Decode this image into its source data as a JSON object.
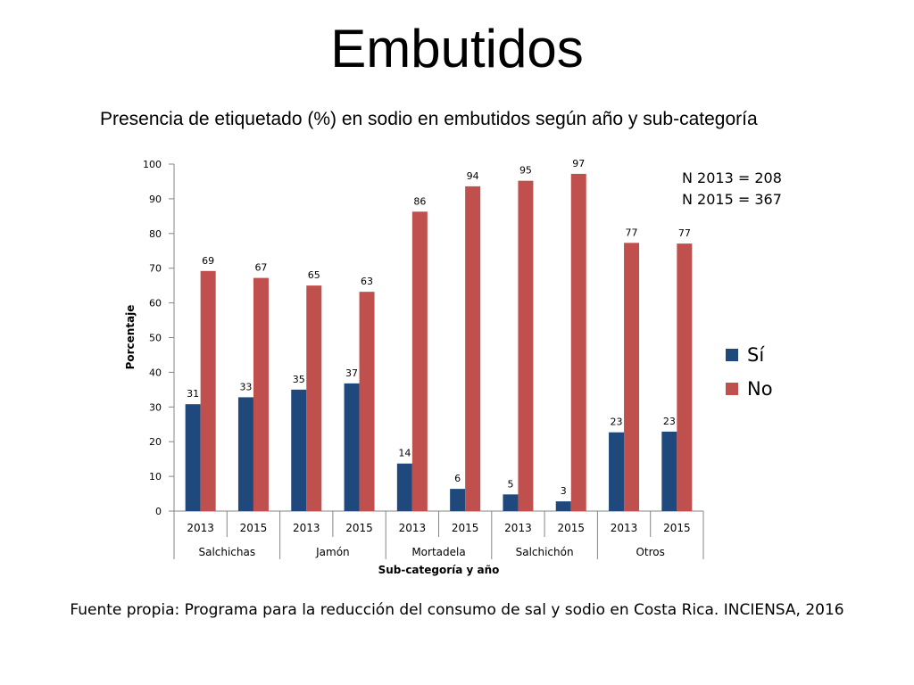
{
  "page": {
    "title": "Embutidos",
    "source": "Fuente propia: Programa para la reducción del consumo de sal y sodio en Costa Rica. INCIENSA, 2016"
  },
  "notes": [
    "N 2013 = 208",
    "N 2015 = 367"
  ],
  "chart_data": {
    "type": "bar",
    "title": "Presencia de etiquetado (%) en sodio en embutidos según año y sub-categoría",
    "xlabel": "Sub-categoría y año",
    "ylabel": "Porcentaje",
    "ylim": [
      0,
      100
    ],
    "yticks": [
      0,
      10,
      20,
      30,
      40,
      50,
      60,
      70,
      80,
      90,
      100
    ],
    "grid": false,
    "legend_position": "right",
    "categories": [
      "2013",
      "2015",
      "2013",
      "2015",
      "2013",
      "2015",
      "2013",
      "2015",
      "2013",
      "2015"
    ],
    "groups": [
      {
        "label": "Salchichas",
        "span": 2
      },
      {
        "label": "Jamón",
        "span": 2
      },
      {
        "label": "Mortadela",
        "span": 2
      },
      {
        "label": "Salchichón",
        "span": 2
      },
      {
        "label": "Otros",
        "span": 2
      }
    ],
    "series": [
      {
        "name": "Sí",
        "color": "#1F497D",
        "values": [
          31,
          33,
          35,
          37,
          14,
          6,
          5,
          3,
          23,
          23
        ],
        "plotted": [
          30.8,
          32.8,
          35,
          36.8,
          13.7,
          6.4,
          4.8,
          2.8,
          22.7,
          22.9
        ]
      },
      {
        "name": "No",
        "color": "#C0504D",
        "values": [
          69,
          67,
          65,
          63,
          86,
          94,
          95,
          97,
          77,
          77
        ],
        "plotted": [
          69.2,
          67.2,
          65,
          63.2,
          86.3,
          93.6,
          95.2,
          97.2,
          77.3,
          77.1
        ]
      }
    ]
  }
}
